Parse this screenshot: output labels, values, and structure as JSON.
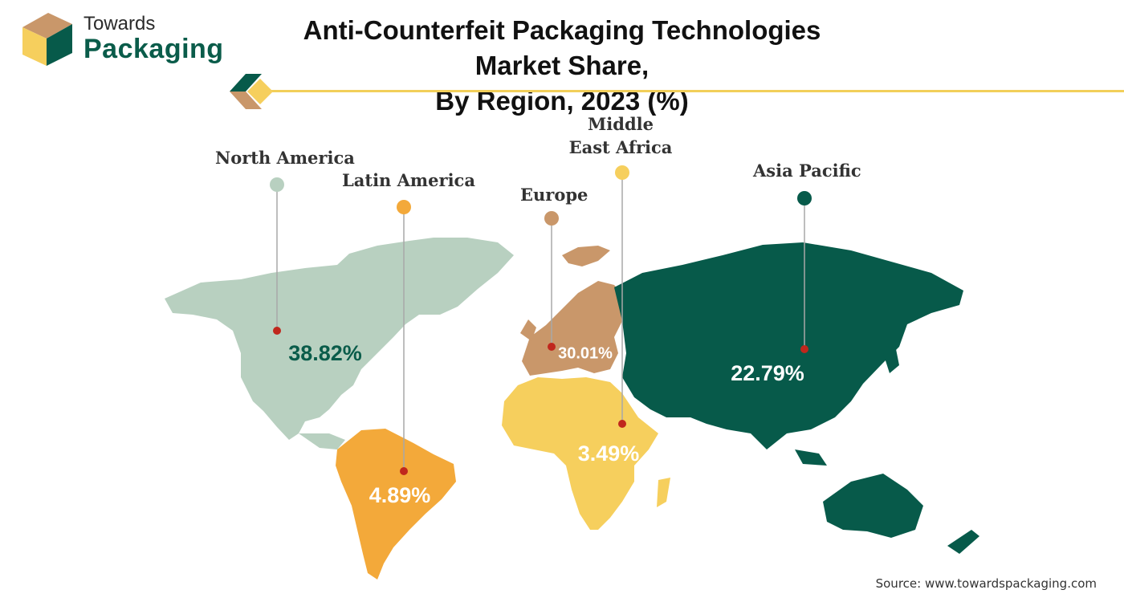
{
  "brand": {
    "line1": "Towards",
    "line2": "Packaging"
  },
  "title_line1": "Anti-Counterfeit Packaging Technologies Market Share,",
  "title_line2": "By Region, 2023 (%)",
  "source": "Source: www.towardspackaging.com",
  "colors": {
    "north_america": "#b8d0c0",
    "latin_america": "#f3a93a",
    "europe": "#c9976a",
    "middle_east_africa": "#f6cf5d",
    "asia_pacific": "#075a4a",
    "marker": "#c0271d",
    "accent_rule": "#f2cf5a"
  },
  "chart_data": {
    "type": "pie",
    "title": "Anti-Counterfeit Packaging Technologies Market Share, By Region, 2023 (%)",
    "categories": [
      "North America",
      "Latin America",
      "Europe",
      "Middle East Africa",
      "Asia Pacific"
    ],
    "values": [
      38.82,
      4.89,
      30.01,
      3.49,
      22.79
    ],
    "value_labels": [
      "38.82%",
      "4.89%",
      "30.01%",
      "3.49%",
      "22.79%"
    ],
    "unit": "%"
  }
}
